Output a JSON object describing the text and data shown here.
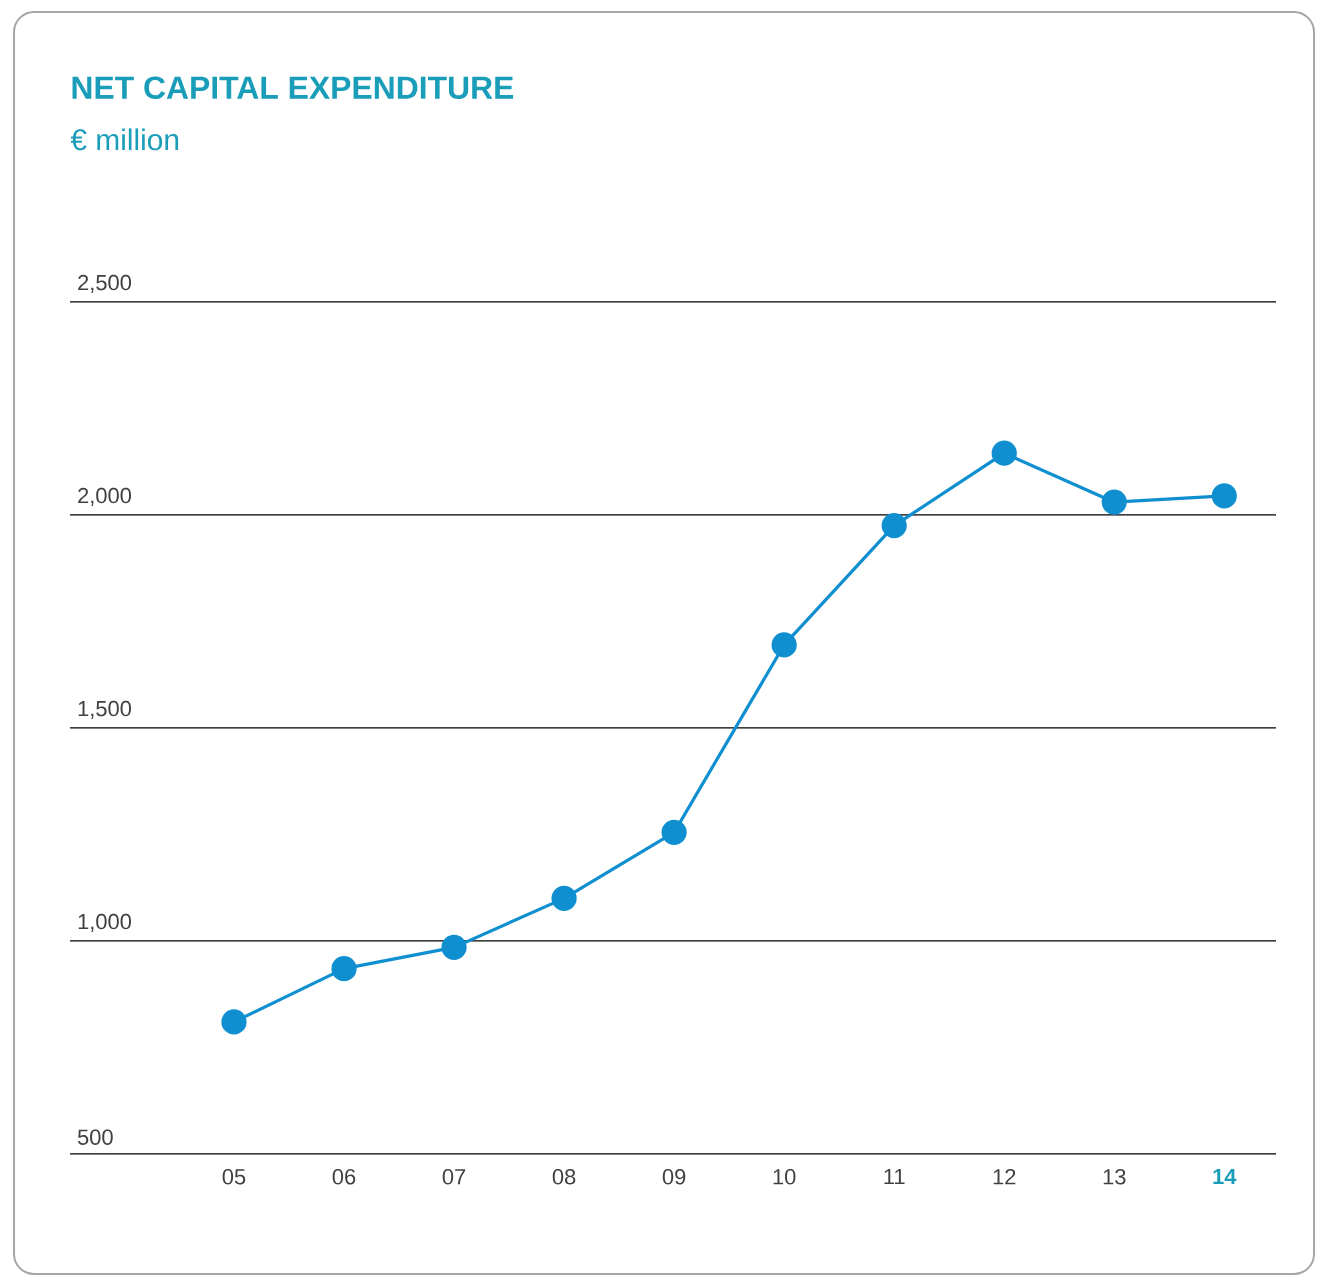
{
  "chart_data": {
    "type": "line",
    "title": "NET CAPITAL EXPENDITURE",
    "subtitle": "€ million",
    "categories": [
      "05",
      "06",
      "07",
      "08",
      "09",
      "10",
      "11",
      "12",
      "13",
      "14"
    ],
    "values": [
      810,
      935,
      985,
      1100,
      1255,
      1695,
      1975,
      2145,
      2030,
      2045
    ],
    "color": "#0f8fd0",
    "ylim": [
      500,
      2500
    ],
    "yticks": [
      {
        "value": 500,
        "label": "500"
      },
      {
        "value": 1000,
        "label": "1,000"
      },
      {
        "value": 1500,
        "label": "1,500"
      },
      {
        "value": 2000,
        "label": "2,000"
      },
      {
        "value": 2500,
        "label": "2,500"
      }
    ],
    "grid": "y",
    "marker": "circle",
    "line_style": "solid"
  }
}
